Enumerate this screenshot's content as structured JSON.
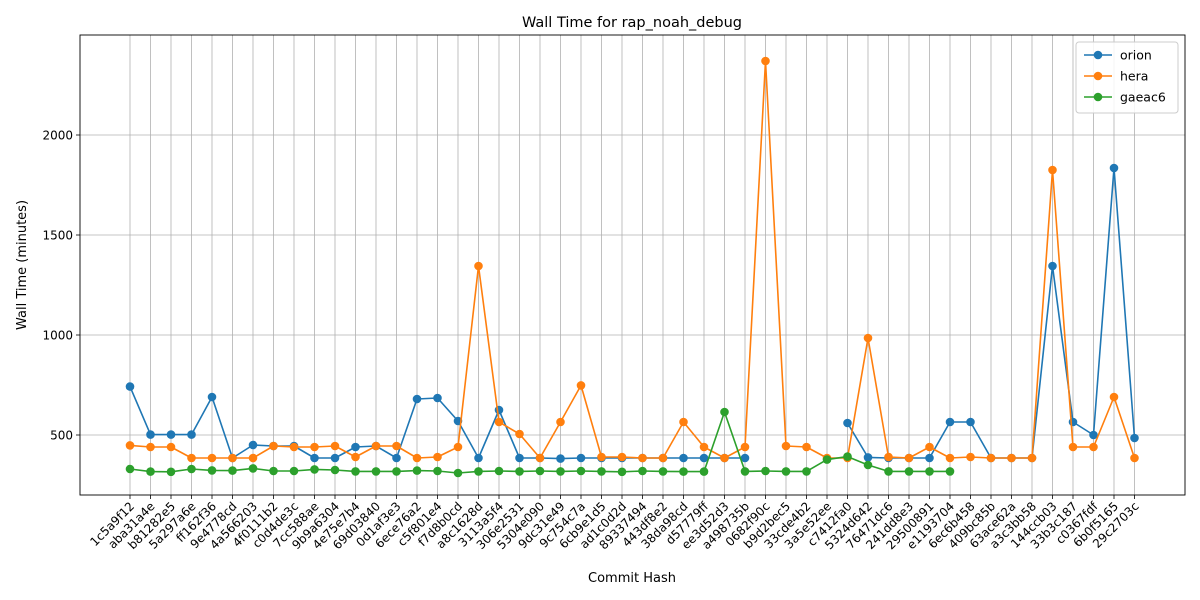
{
  "chart_data": {
    "type": "line",
    "title": "Wall Time for rap_noah_debug",
    "xlabel": "Commit Hash",
    "ylabel": "Wall Time (minutes)",
    "ylim": [
      200,
      2500
    ],
    "yticks": [
      500,
      1000,
      1500,
      2000
    ],
    "grid": true,
    "legend_position": "top-right",
    "categories": [
      "1c5a9f12",
      "aba31a4e",
      "b81282e5",
      "5a297a6e",
      "ff162f36",
      "9e4778cd",
      "4a566203",
      "4f0111b2",
      "c0d4de3c",
      "7cc588ae",
      "9b9a6304",
      "4e75e7b4",
      "69d03840",
      "0d1af3e3",
      "6ece76a2",
      "c5f801e4",
      "f7d8b0cd",
      "a8c1628d",
      "3113a5f4",
      "306e2531",
      "5304e090",
      "9dc31e49",
      "9c754c7a",
      "6cb9e1d5",
      "ad1c0d2d",
      "89337494",
      "443df8e2",
      "38da98cd",
      "d57779ff",
      "ee3d52d3",
      "a498735b",
      "0682f90c",
      "b9d2bec5",
      "33cde4b2",
      "3a5e52ee",
      "c7412fa0",
      "5324d642",
      "76471dc6",
      "241dd8e3",
      "29500891",
      "e1193704",
      "6ec6b458",
      "409bc85b",
      "63ace62a",
      "a3c3bb58",
      "144ccb03",
      "33b3c187",
      "c0367fdf",
      "6b0f5165",
      "29c2703c"
    ],
    "series": [
      {
        "name": "orion",
        "color": "#1f77b4",
        "values": [
          742,
          502,
          502,
          502,
          690,
          385,
          450,
          445,
          445,
          385,
          385,
          440,
          445,
          385,
          680,
          685,
          570,
          385,
          625,
          385,
          385,
          382,
          385,
          385,
          385,
          385,
          385,
          385,
          385,
          385,
          385,
          null,
          null,
          null,
          null,
          560,
          388,
          385,
          385,
          385,
          565,
          565,
          385,
          385,
          385,
          1345,
          565,
          500,
          1835,
          485
        ]
      },
      {
        "name": "hera",
        "color": "#ff7f0e",
        "values": [
          448,
          440,
          440,
          385,
          385,
          385,
          385,
          445,
          440,
          440,
          445,
          390,
          445,
          445,
          385,
          390,
          440,
          1345,
          565,
          505,
          385,
          565,
          748,
          390,
          390,
          385,
          385,
          565,
          440,
          385,
          440,
          2370,
          445,
          440,
          385,
          385,
          985,
          390,
          385,
          440,
          385,
          390,
          385,
          385,
          385,
          1825,
          440,
          440,
          690,
          385
        ]
      },
      {
        "name": "gaeac6",
        "color": "#2ca02c",
        "values": [
          330,
          317,
          316,
          330,
          323,
          322,
          333,
          320,
          320,
          328,
          325,
          318,
          318,
          318,
          322,
          320,
          310,
          318,
          320,
          318,
          320,
          318,
          320,
          318,
          316,
          320,
          318,
          317,
          317,
          615,
          318,
          320,
          318,
          318,
          377,
          392,
          350,
          318,
          318,
          318,
          318,
          null,
          null,
          null,
          null,
          null,
          null,
          null,
          null,
          null
        ]
      }
    ]
  }
}
